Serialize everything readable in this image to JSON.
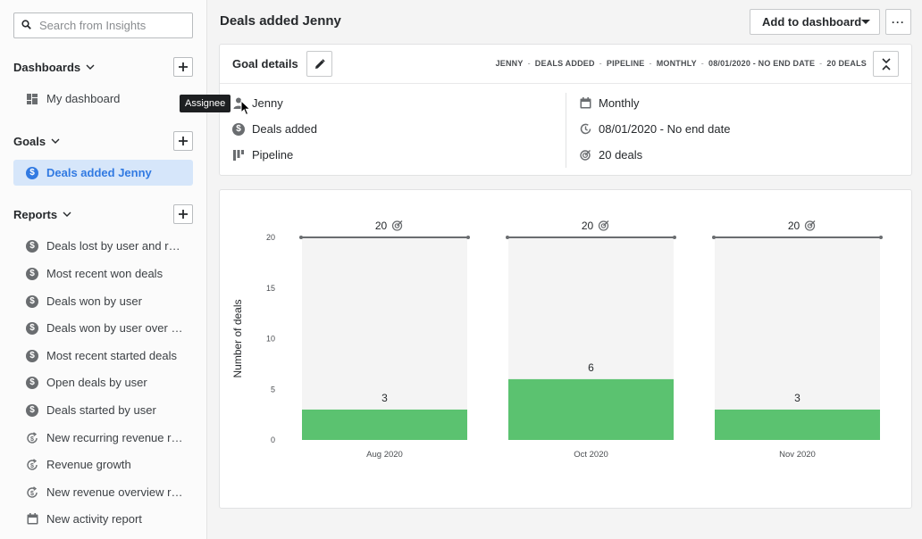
{
  "sidebar": {
    "search_placeholder": "Search from Insights",
    "dashboards": {
      "title": "Dashboards",
      "items": [
        {
          "label": "My dashboard"
        }
      ]
    },
    "goals": {
      "title": "Goals",
      "items": [
        {
          "label": "Deals added Jenny"
        }
      ]
    },
    "reports": {
      "title": "Reports",
      "items": [
        {
          "label": "Deals lost by user and reason",
          "icon": "dollar-icon"
        },
        {
          "label": "Most recent won deals",
          "icon": "dollar-icon"
        },
        {
          "label": "Deals won by user",
          "icon": "dollar-icon"
        },
        {
          "label": "Deals won by user over time",
          "icon": "dollar-icon"
        },
        {
          "label": "Most recent started deals",
          "icon": "dollar-icon"
        },
        {
          "label": "Open deals by user",
          "icon": "dollar-icon"
        },
        {
          "label": "Deals started by user",
          "icon": "dollar-icon"
        },
        {
          "label": "New recurring revenue report",
          "icon": "recurring-dollar-icon"
        },
        {
          "label": "Revenue growth",
          "icon": "recurring-dollar-icon"
        },
        {
          "label": "New revenue overview report",
          "icon": "recurring-dollar-icon"
        },
        {
          "label": "New activity report",
          "icon": "calendar-icon"
        }
      ]
    }
  },
  "tooltip": "Assignee",
  "header": {
    "title": "Deals added Jenny",
    "add_to_dashboard": "Add to dashboard",
    "more": "···"
  },
  "goal_details": {
    "title": "Goal details",
    "crumbs": [
      "JENNY",
      "DEALS ADDED",
      "PIPELINE",
      "MONTHLY",
      "08/01/2020 - NO END DATE",
      "20 DEALS"
    ],
    "assignee": "Jenny",
    "type": "Deals added",
    "pipeline": "Pipeline",
    "interval": "Monthly",
    "duration": "08/01/2020 - No end date",
    "target": "20 deals"
  },
  "chart_data": {
    "type": "bar",
    "categories": [
      "Aug 2020",
      "Oct 2020",
      "Nov 2020"
    ],
    "values": [
      3,
      6,
      3
    ],
    "goal_values": [
      20,
      20,
      20
    ],
    "goal_labels": [
      "20",
      "20",
      "20"
    ],
    "ylabel": "Number of deals",
    "ylim": [
      0,
      20
    ],
    "yticks": [
      0,
      5,
      10,
      15,
      20
    ],
    "bar_color": "#5bc270",
    "background_bar_color": "#f4f4f4",
    "goal_line_color": "#6a6d70"
  }
}
